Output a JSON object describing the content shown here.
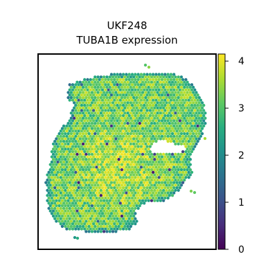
{
  "chart_data": {
    "type": "heatmap",
    "subtype": "spatial-hexbin",
    "title_lines": [
      "UKF248",
      "TUBA1B expression"
    ],
    "xlabel": "",
    "ylabel": "",
    "axes_ticks_visible": false,
    "grid": false,
    "colormap": "viridis",
    "colorbar": {
      "position": "right",
      "range": [
        0,
        4.15
      ],
      "ticks": [
        0,
        1,
        2,
        3,
        4
      ],
      "tick_labels": [
        "0",
        "1",
        "2",
        "3",
        "4"
      ]
    },
    "value_distribution": {
      "typical_range": [
        2.5,
        4.0
      ],
      "dominant_level": 3.2,
      "edge_level": 2.0,
      "min_observed": 0.3,
      "max_observed": 4.1
    }
  }
}
